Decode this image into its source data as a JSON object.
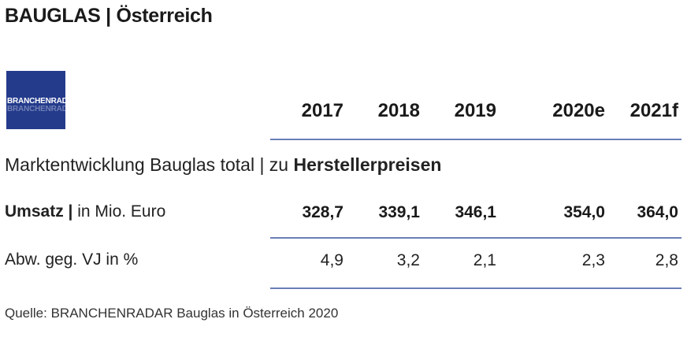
{
  "title": "BAUGLAS | Österreich",
  "logo": {
    "text": "BRANCHENRADAR"
  },
  "years": [
    "2017",
    "2018",
    "2019",
    "2020e",
    "2021f"
  ],
  "section": {
    "title_prefix": "Marktentwicklung Bauglas total | zu ",
    "title_bold": "Herstellerpreisen"
  },
  "rows": [
    {
      "label_bold": "Umsatz |",
      "label_rest": " in Mio. Euro",
      "values": [
        "328,7",
        "339,1",
        "346,1",
        "354,0",
        "364,0"
      ]
    },
    {
      "label": "Abw. geg. VJ in %",
      "values": [
        "4,9",
        "3,2",
        "2,1",
        "2,3",
        "2,8"
      ]
    }
  ],
  "source": "Quelle: BRANCHENRADAR Bauglas in Österreich 2020",
  "colors": {
    "logo_bg": "#243b8c",
    "rule": "#6a7fb8"
  }
}
